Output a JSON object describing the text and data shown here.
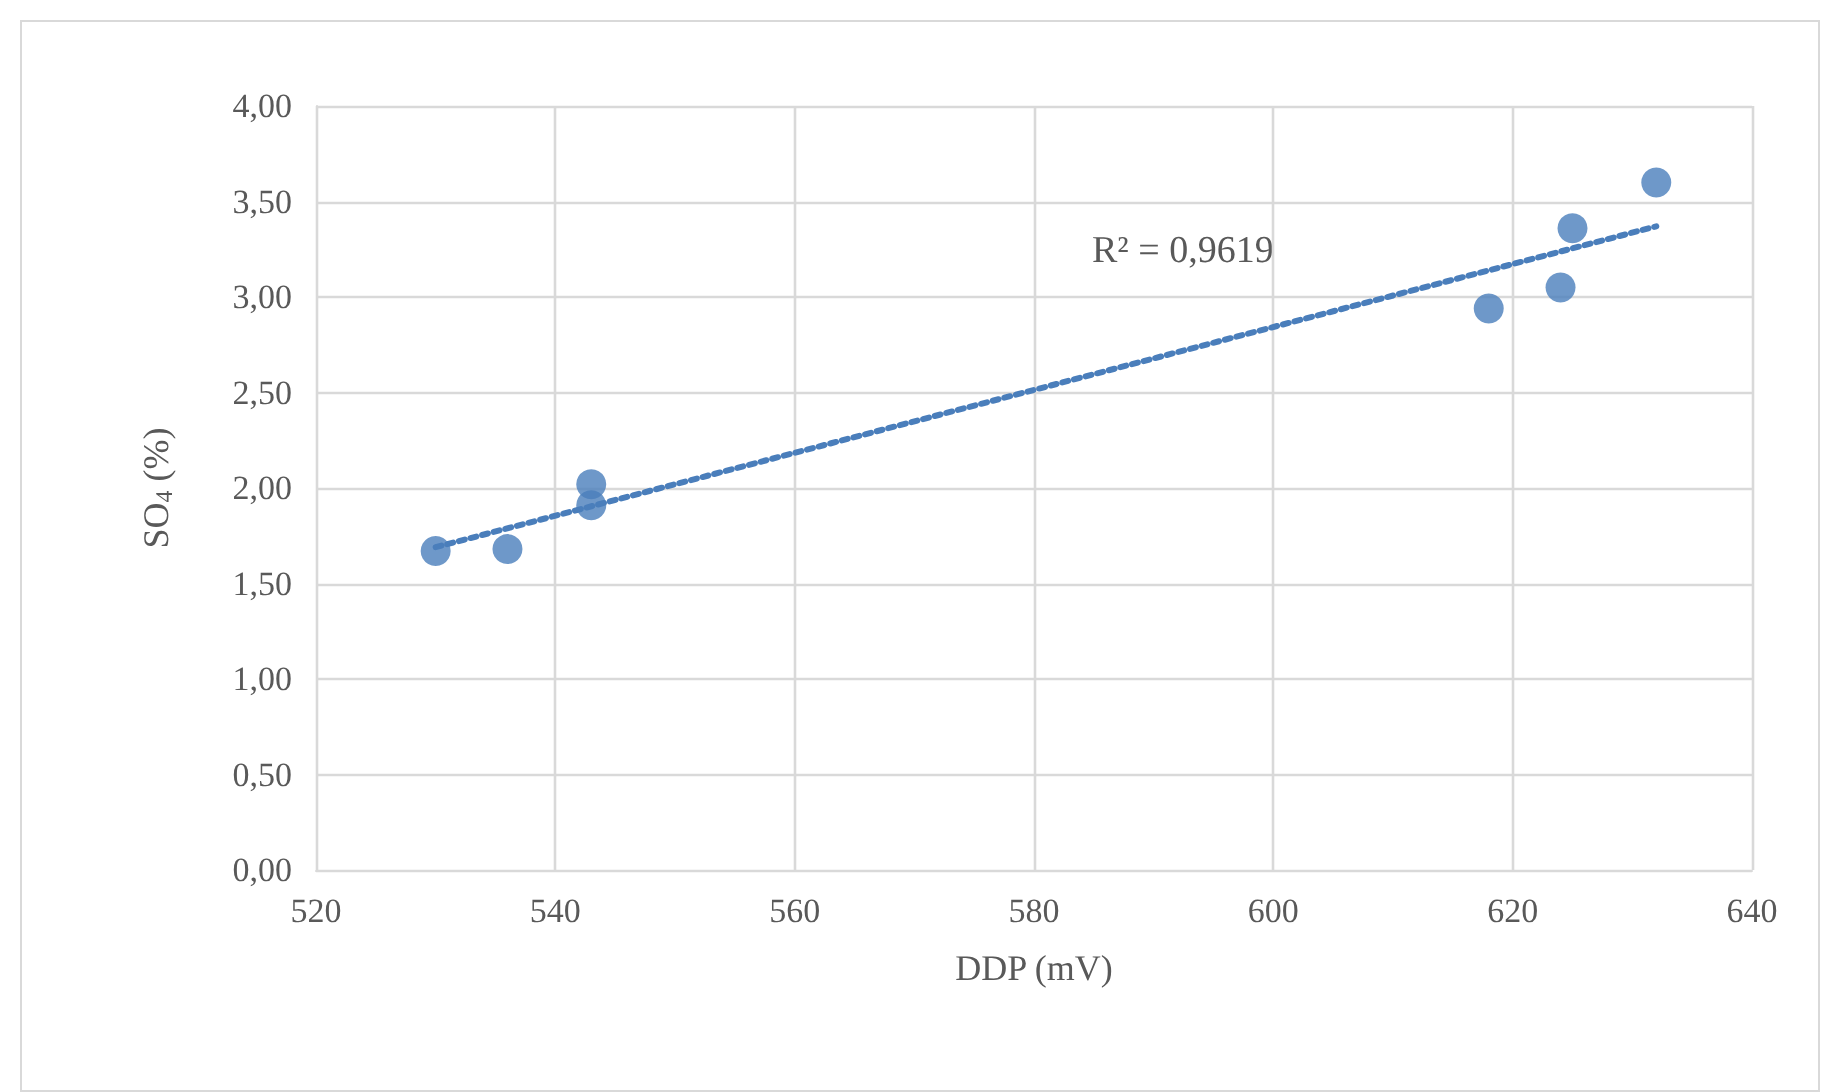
{
  "chart_data": {
    "type": "scatter",
    "xlabel": "DDP (mV)",
    "ylabel": "SO$_{4}$ (%)",
    "x": [
      530,
      536,
      543,
      543,
      618,
      624,
      625,
      632
    ],
    "series": [
      {
        "color": "#4a7ebb",
        "values": [
          1.67,
          1.68,
          2.02,
          1.91,
          2.94,
          3.05,
          3.36,
          3.6
        ]
      },
      {
        "type": "line",
        "color": "#4a7ebb",
        "line_style": "dotted",
        "marker": "none",
        "x": [
          530,
          632
        ],
        "values": [
          1.69,
          3.37
        ]
      }
    ],
    "xlim": [
      520,
      640
    ],
    "xticks": [
      520,
      540,
      560,
      580,
      600,
      620,
      640
    ],
    "ylim": [
      0,
      4
    ],
    "yticks": [
      {
        "value": 0,
        "label": "0,00"
      },
      {
        "value": 0.5,
        "label": "0,50"
      },
      {
        "value": 1,
        "label": "1,00"
      },
      {
        "value": 1.5,
        "label": "1,50"
      },
      {
        "value": 2,
        "label": "2,00"
      },
      {
        "value": 2.5,
        "label": "2,50"
      },
      {
        "value": 3,
        "label": "3,00"
      },
      {
        "value": 3.5,
        "label": "3,50"
      },
      {
        "value": 4,
        "label": "4,00"
      }
    ],
    "grid": true,
    "marker": "circle",
    "annotations": [
      "R² = 0,9619"
    ]
  }
}
